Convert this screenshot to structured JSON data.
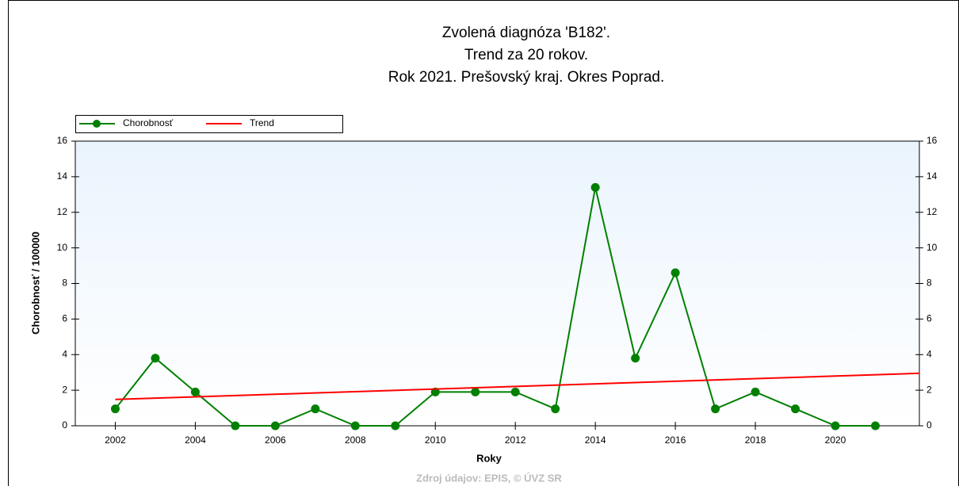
{
  "chart_data": {
    "type": "line",
    "title": [
      "Zvolená diagnóza 'B182'.",
      "Trend za 20 rokov.",
      "Rok 2021. Prešovský kraj. Okres Poprad."
    ],
    "xlabel": "Roky",
    "ylabel": "Chorobnosť / 100000",
    "source": "Zdroj údajov: EPIS, © ÚVZ SR",
    "x": [
      2002,
      2003,
      2004,
      2005,
      2006,
      2007,
      2008,
      2009,
      2010,
      2011,
      2012,
      2013,
      2014,
      2015,
      2016,
      2017,
      2018,
      2019,
      2020,
      2021
    ],
    "series": [
      {
        "name": "Chorobnosť",
        "color": "#008000",
        "markers": true,
        "values": [
          0.95,
          3.8,
          1.9,
          0,
          0,
          0.95,
          0,
          0,
          1.9,
          1.9,
          1.9,
          0.95,
          13.4,
          3.8,
          8.6,
          0.95,
          1.9,
          0.95,
          0,
          0
        ]
      },
      {
        "name": "Trend",
        "color": "#ff0000",
        "markers": false,
        "x": [
          2002,
          2022.1
        ],
        "values": [
          1.48,
          2.95
        ]
      }
    ],
    "xlim": [
      2001,
      2022.1
    ],
    "xticks": [
      2002,
      2004,
      2006,
      2008,
      2010,
      2012,
      2014,
      2016,
      2018,
      2020
    ],
    "ylim": [
      0,
      16
    ],
    "yticks": [
      0,
      2,
      4,
      6,
      8,
      10,
      12,
      14,
      16
    ],
    "y2lim": [
      0,
      16
    ],
    "y2ticks": [
      0,
      2,
      4,
      6,
      8,
      10,
      12,
      14,
      16
    ],
    "legend": "top-left"
  }
}
